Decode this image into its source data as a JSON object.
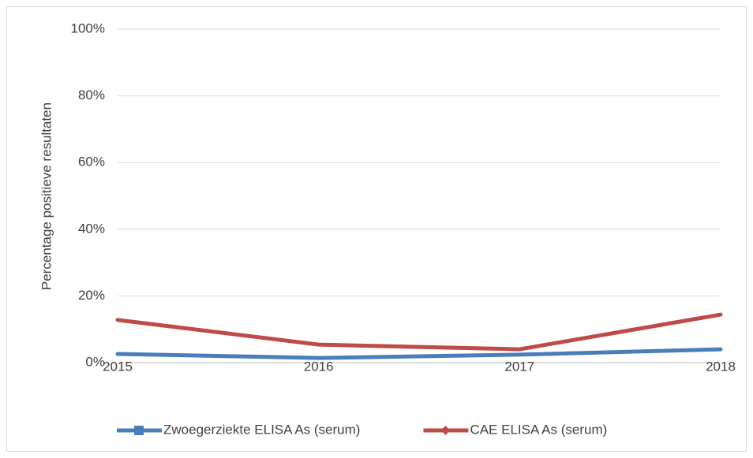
{
  "chart_data": {
    "type": "line",
    "y_label": "Percentage positieve resultaten",
    "categories": [
      "2015",
      "2016",
      "2017",
      "2018"
    ],
    "series": [
      {
        "name": "Zwoegerziekte ELISA As (serum)",
        "color": "#4a7ebb",
        "marker": "square",
        "values": [
          2.6,
          1.4,
          2.4,
          4.0
        ]
      },
      {
        "name": "CAE ELISA As (serum)",
        "color": "#be4b48",
        "marker": "diamond",
        "values": [
          12.8,
          5.4,
          4.0,
          14.4
        ]
      }
    ],
    "ylim": [
      0,
      100
    ],
    "yticks": [
      {
        "value": 0,
        "label": "0%"
      },
      {
        "value": 20,
        "label": "20%"
      },
      {
        "value": 40,
        "label": "40%"
      },
      {
        "value": 60,
        "label": "60%"
      },
      {
        "value": 80,
        "label": "80%"
      },
      {
        "value": 100,
        "label": "100%"
      }
    ],
    "grid": true,
    "legend": "bottom"
  }
}
